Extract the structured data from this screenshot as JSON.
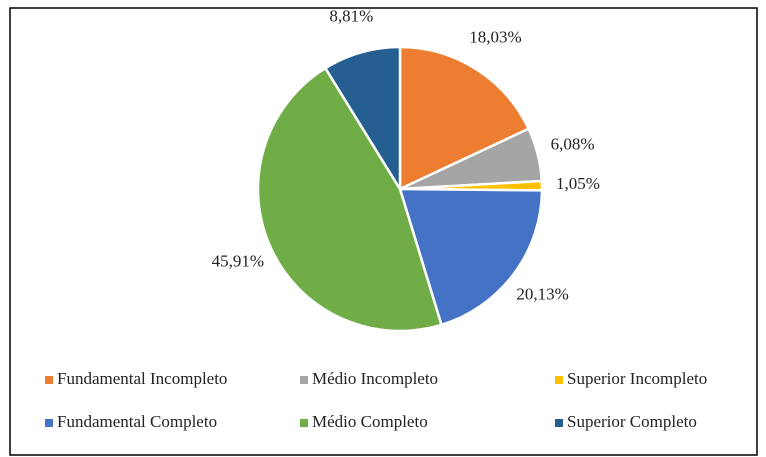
{
  "chart_data": {
    "type": "pie",
    "categories": [
      "Fundamental Incompleto",
      "Médio Incompleto",
      "Superior Incompleto",
      "Fundamental Completo",
      "Médio Completo",
      "Superior Completo"
    ],
    "values": [
      18.03,
      6.08,
      1.05,
      20.13,
      45.91,
      8.81
    ],
    "value_labels": [
      "18,03%",
      "6,08%",
      "1,05%",
      "20,13%",
      "45,91%",
      "8,81%"
    ],
    "colors": [
      "#ED7D31",
      "#A5A5A5",
      "#FFC000",
      "#4472C4",
      "#70AD47",
      "#255E91"
    ],
    "legend": "bottom"
  }
}
